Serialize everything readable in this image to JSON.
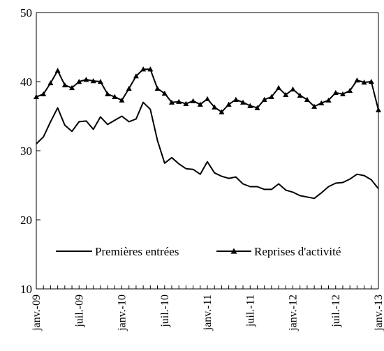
{
  "chart_data": {
    "type": "line",
    "title": "",
    "xlabel": "",
    "ylabel": "",
    "ylim": [
      10,
      50
    ],
    "yticks": [
      10,
      20,
      30,
      40,
      50
    ],
    "grid": false,
    "legend_position": "bottom-center",
    "x_tick_labels": [
      "janv.-09",
      "juil.-09",
      "janv.-10",
      "juil.-10",
      "janv.-11",
      "juil.-11",
      "janv.-12",
      "juil.-12",
      "janv.-13"
    ],
    "x": [
      "janv.-09",
      "févr.-09",
      "mars-09",
      "avr.-09",
      "mai-09",
      "juin-09",
      "juil.-09",
      "août-09",
      "sept.-09",
      "oct.-09",
      "nov.-09",
      "déc.-09",
      "janv.-10",
      "févr.-10",
      "mars-10",
      "avr.-10",
      "mai-10",
      "juin-10",
      "juil.-10",
      "août-10",
      "sept.-10",
      "oct.-10",
      "nov.-10",
      "déc.-10",
      "janv.-11",
      "févr.-11",
      "mars-11",
      "avr.-11",
      "mai-11",
      "juin-11",
      "juil.-11",
      "août-11",
      "sept.-11",
      "oct.-11",
      "nov.-11",
      "déc.-11",
      "janv.-12",
      "févr.-12",
      "mars-12",
      "avr.-12",
      "mai-12",
      "juin-12",
      "juil.-12",
      "août-12",
      "sept.-12",
      "oct.-12",
      "nov.-12",
      "déc.-12",
      "janv.-13"
    ],
    "series": [
      {
        "name": "Premières entrées",
        "marker": "none",
        "values": [
          31.0,
          32.0,
          34.2,
          36.2,
          33.7,
          32.8,
          34.2,
          34.3,
          33.1,
          34.9,
          33.8,
          34.4,
          35.0,
          34.2,
          34.6,
          37.0,
          36.0,
          31.5,
          28.2,
          29.0,
          28.1,
          27.4,
          27.3,
          26.6,
          28.4,
          26.8,
          26.3,
          26.0,
          26.2,
          25.2,
          24.8,
          24.8,
          24.4,
          24.4,
          25.2,
          24.3,
          24.0,
          23.5,
          23.3,
          23.1,
          23.9,
          24.8,
          25.3,
          25.4,
          25.9,
          26.6,
          26.4,
          25.8,
          24.5
        ]
      },
      {
        "name": "Reprises d'activité",
        "marker": "triangle",
        "values": [
          37.8,
          38.2,
          39.8,
          41.6,
          39.5,
          39.1,
          40.0,
          40.3,
          40.1,
          40.0,
          38.2,
          37.8,
          37.3,
          39.0,
          40.8,
          41.8,
          41.8,
          39.0,
          38.3,
          37.0,
          37.1,
          36.8,
          37.2,
          36.7,
          37.5,
          36.3,
          35.6,
          36.7,
          37.4,
          37.0,
          36.5,
          36.2,
          37.4,
          37.8,
          39.1,
          38.1,
          38.9,
          38.0,
          37.4,
          36.4,
          36.9,
          37.3,
          38.4,
          38.2,
          38.7,
          40.2,
          39.9,
          40.0,
          35.9
        ]
      }
    ]
  }
}
